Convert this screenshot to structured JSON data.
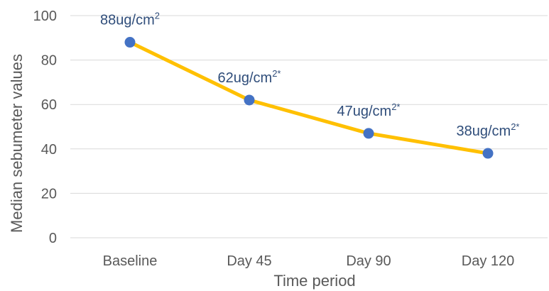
{
  "chart_data": {
    "type": "line",
    "title": "",
    "xlabel": "Time period",
    "ylabel": "Median sebumeter values",
    "categories": [
      "Baseline",
      "Day 45",
      "Day 90",
      "Day 120"
    ],
    "ylim": [
      0,
      100
    ],
    "yticks": [
      0,
      20,
      40,
      60,
      80,
      100
    ],
    "grid": true,
    "legend": "none",
    "series": [
      {
        "values": [
          88,
          62,
          47,
          38
        ],
        "line_color": "#FFC000",
        "marker_color": "#4472C4",
        "data_labels": [
          {
            "main": "88ug/cm",
            "sup": "2"
          },
          {
            "main": "62ug/cm",
            "sup": "2*"
          },
          {
            "main": "47ug/cm",
            "sup": "2*"
          },
          {
            "main": "38ug/cm",
            "sup": "2*"
          }
        ]
      }
    ]
  }
}
